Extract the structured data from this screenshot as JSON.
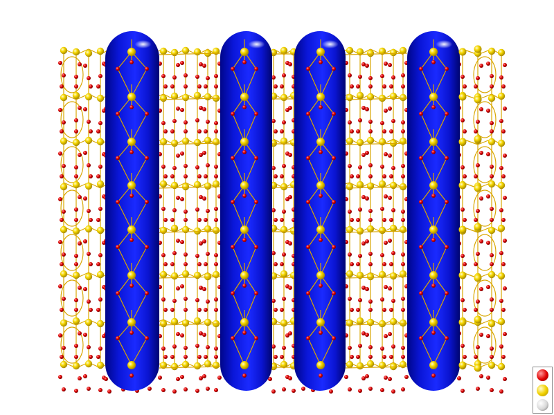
{
  "scene": {
    "title": "",
    "colors": {
      "background": "#ffffff",
      "oxygen_atom": "#e00000",
      "silicon_atom": "#f2d200",
      "bond": "#d9a600",
      "channel": "#0a14d8"
    },
    "channel_count": 4,
    "atom_types": [
      "oxygen",
      "silicon"
    ]
  },
  "legend": {
    "items": [
      {
        "name": "oxygen-legend-dot",
        "color": "#e00000"
      },
      {
        "name": "silicon-legend-dot",
        "color": "#f2d200"
      },
      {
        "name": "other-legend-dot",
        "color": "#e8e8e8"
      }
    ]
  }
}
